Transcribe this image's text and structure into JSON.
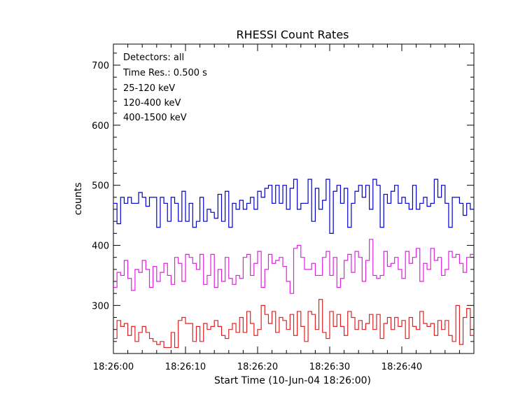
{
  "chart_data": {
    "type": "line",
    "title": "RHESSI Count Rates",
    "xlabel": "Start Time (10-Jun-04 18:26:00)",
    "ylabel": "counts",
    "xlim": [
      0,
      50
    ],
    "ylim": [
      220,
      735
    ],
    "x_tick_values": [
      0,
      10,
      20,
      30,
      40
    ],
    "x_tick_labels": [
      "18:26:00",
      "18:26:10",
      "18:26:20",
      "18:26:30",
      "18:26:40"
    ],
    "y_tick_values": [
      300,
      400,
      500,
      600,
      700
    ],
    "y_tick_labels": [
      "300",
      "400",
      "500",
      "600",
      "700"
    ],
    "grid": false,
    "legend_placement": "top-left",
    "annotations": [
      "Detectors: all",
      "Time Res.: 0.500 s"
    ],
    "step_seconds": 0.5,
    "series": [
      {
        "name": "25-120 keV",
        "color": "#0000cc",
        "values": [
          470,
          436,
          480,
          470,
          480,
          470,
          470,
          488,
          480,
          465,
          480,
          480,
          430,
          480,
          470,
          440,
          480,
          470,
          440,
          490,
          440,
          470,
          430,
          440,
          480,
          440,
          460,
          455,
          445,
          485,
          440,
          490,
          430,
          470,
          460,
          475,
          460,
          470,
          480,
          460,
          490,
          480,
          495,
          500,
          470,
          500,
          470,
          500,
          460,
          495,
          510,
          460,
          470,
          470,
          510,
          440,
          495,
          460,
          475,
          510,
          420,
          490,
          500,
          470,
          495,
          430,
          470,
          490,
          500,
          480,
          500,
          460,
          510,
          500,
          430,
          485,
          470,
          490,
          500,
          470,
          480,
          470,
          460,
          500,
          460,
          470,
          480,
          465,
          470,
          510,
          480,
          500,
          470,
          430,
          480,
          480,
          470,
          450,
          470,
          460
        ]
      },
      {
        "name": "120-400 keV",
        "color": "#e020e0",
        "values": [
          330,
          355,
          350,
          375,
          345,
          325,
          360,
          355,
          375,
          360,
          330,
          365,
          340,
          355,
          370,
          350,
          335,
          380,
          370,
          340,
          385,
          380,
          370,
          360,
          385,
          335,
          350,
          385,
          330,
          360,
          340,
          380,
          345,
          335,
          350,
          345,
          380,
          385,
          350,
          370,
          390,
          330,
          360,
          385,
          370,
          375,
          380,
          365,
          340,
          320,
          395,
          400,
          380,
          360,
          360,
          370,
          350,
          350,
          380,
          390,
          350,
          380,
          330,
          345,
          375,
          385,
          355,
          390,
          380,
          340,
          375,
          410,
          350,
          345,
          350,
          390,
          365,
          370,
          380,
          360,
          345,
          390,
          370,
          380,
          395,
          340,
          370,
          360,
          395,
          375,
          380,
          350,
          360,
          390,
          380,
          385,
          370,
          355,
          380,
          385
        ]
      },
      {
        "name": "400-1500 keV",
        "color": "#e02020",
        "values": [
          245,
          275,
          265,
          270,
          250,
          265,
          240,
          255,
          265,
          255,
          245,
          240,
          235,
          240,
          230,
          230,
          255,
          230,
          275,
          280,
          270,
          270,
          240,
          265,
          240,
          270,
          260,
          265,
          275,
          265,
          250,
          245,
          260,
          270,
          255,
          280,
          255,
          290,
          270,
          250,
          260,
          300,
          285,
          270,
          290,
          255,
          280,
          275,
          260,
          285,
          250,
          290,
          265,
          240,
          290,
          285,
          260,
          310,
          255,
          245,
          290,
          265,
          285,
          265,
          250,
          290,
          280,
          260,
          275,
          260,
          270,
          285,
          260,
          285,
          245,
          270,
          280,
          260,
          280,
          265,
          275,
          245,
          280,
          265,
          260,
          290,
          270,
          265,
          270,
          250,
          275,
          260,
          275,
          250,
          240,
          300,
          235,
          280,
          295,
          250
        ]
      }
    ]
  }
}
